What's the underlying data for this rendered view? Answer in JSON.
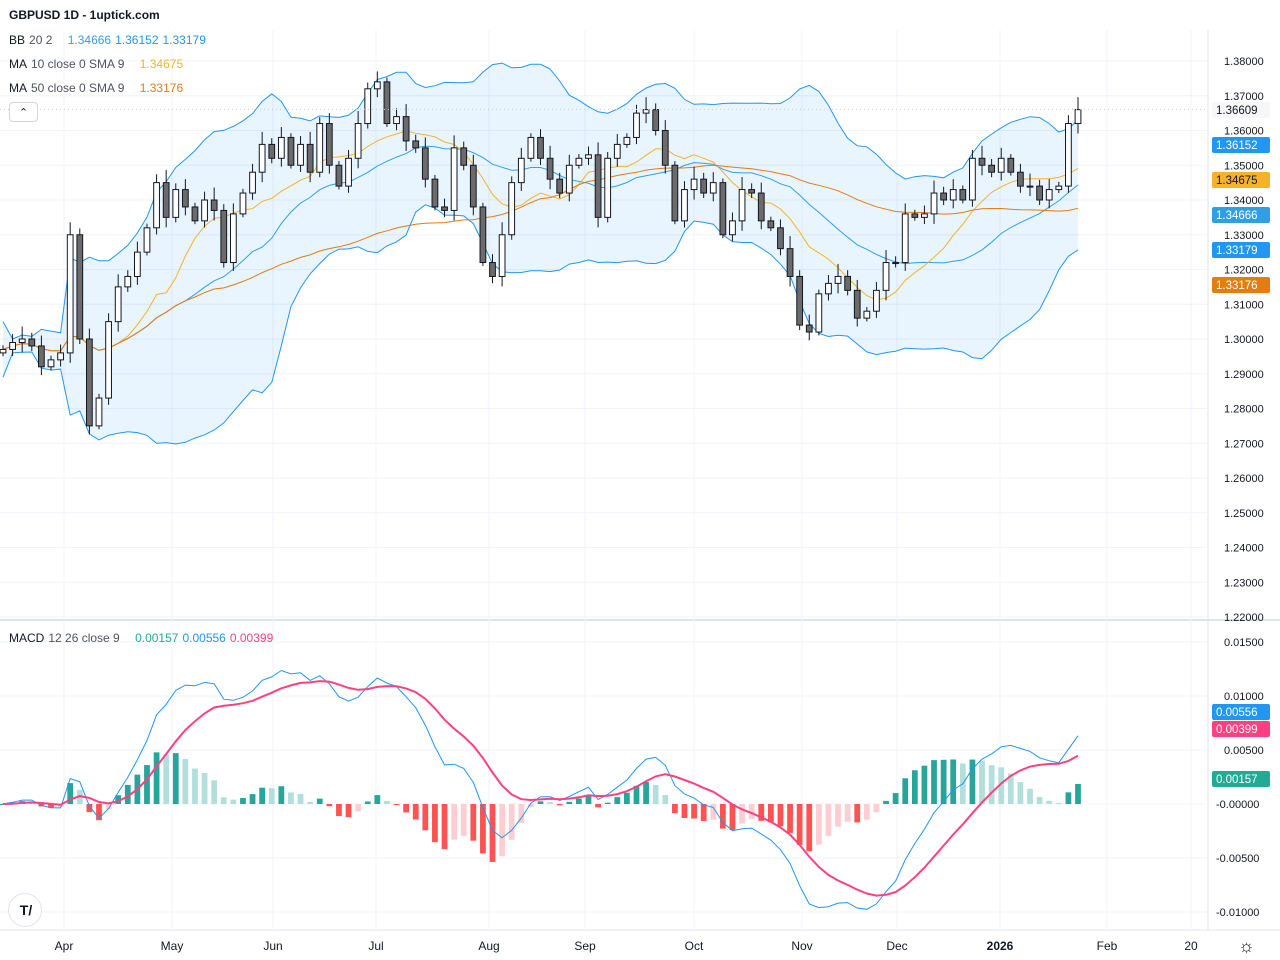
{
  "header": {
    "title": "GBPUSD 1D - 1uptick.com"
  },
  "legend": {
    "bb": {
      "label": "BB",
      "params": "20 2",
      "basis": "1.34666",
      "upper": "1.36152",
      "lower": "1.33179"
    },
    "ma10": {
      "label": "MA",
      "params": "10 close 0 SMA 9",
      "value": "1.34675"
    },
    "ma50": {
      "label": "MA",
      "params": "50 close 0 SMA 9",
      "value": "1.33176"
    },
    "macd": {
      "label": "MACD",
      "params": "12 26 close 9",
      "hist": "0.00157",
      "macd": "0.00556",
      "signal": "0.00399"
    }
  },
  "collapse_icon": "chevron-up-icon",
  "colors": {
    "bb": "#2196f3",
    "bb_basis": "#2fa0e8",
    "ma10": "#f5b32a",
    "ma50": "#e57c0f",
    "macd": "#2196f3",
    "signal": "#ff4081",
    "hist_up": "#26a69a",
    "hist_up_fade": "#b2dfdb",
    "hist_down": "#ff5252",
    "hist_down_fade": "#ffcdd2",
    "candle_up": "#ffffff",
    "candle_down": "#6b6b6b"
  },
  "price_axis": {
    "ticks": [
      "1.38000",
      "1.37000",
      "1.36000",
      "1.35000",
      "1.34000",
      "1.33000",
      "1.32000",
      "1.31000",
      "1.30000",
      "1.29000",
      "1.28000",
      "1.27000",
      "1.26000",
      "1.25000",
      "1.24000",
      "1.23000",
      "1.22000"
    ],
    "last_price": "1.36609",
    "badges": [
      {
        "value": "1.36152",
        "color": "#2196f3"
      },
      {
        "value": "1.34675",
        "color": "#f5b32a"
      },
      {
        "value": "1.34666",
        "color": "#2fa0e8"
      },
      {
        "value": "1.33179",
        "color": "#2196f3"
      },
      {
        "value": "1.33176",
        "color": "#e57c0f"
      }
    ]
  },
  "macd_axis": {
    "ticks": [
      "0.01500",
      "0.01000",
      "0.00500",
      "-0.00000",
      "-0.00500",
      "-0.01000"
    ],
    "badges": [
      {
        "value": "0.00556",
        "color": "#2196f3"
      },
      {
        "value": "0.00399",
        "color": "#ff4081"
      },
      {
        "value": "0.00157",
        "color": "#22ab94"
      }
    ]
  },
  "time_axis": {
    "labels": [
      "Apr",
      "May",
      "Jun",
      "Jul",
      "Aug",
      "Sep",
      "Oct",
      "Nov",
      "Dec",
      "2026",
      "Feb",
      "20"
    ]
  },
  "logo": "TV",
  "settings_icon": "gear-icon",
  "chart_data": {
    "type": "candlestick",
    "symbol": "GBPUSD",
    "interval": "1D",
    "ylim": [
      1.22,
      1.385
    ],
    "macd_ylim": [
      -0.011,
      0.0165
    ],
    "grid": true,
    "closes": [
      1.297,
      1.299,
      1.3,
      1.298,
      1.292,
      1.294,
      1.296,
      1.33,
      1.3,
      1.275,
      1.283,
      1.305,
      1.315,
      1.318,
      1.325,
      1.332,
      1.345,
      1.335,
      1.343,
      1.338,
      1.334,
      1.34,
      1.337,
      1.322,
      1.336,
      1.342,
      1.348,
      1.356,
      1.352,
      1.358,
      1.35,
      1.356,
      1.348,
      1.362,
      1.35,
      1.344,
      1.352,
      1.362,
      1.372,
      1.374,
      1.362,
      1.364,
      1.357,
      1.355,
      1.346,
      1.338,
      1.337,
      1.355,
      1.35,
      1.338,
      1.322,
      1.318,
      1.33,
      1.345,
      1.352,
      1.358,
      1.352,
      1.346,
      1.342,
      1.35,
      1.352,
      1.353,
      1.335,
      1.352,
      1.356,
      1.358,
      1.365,
      1.366,
      1.36,
      1.35,
      1.334,
      1.343,
      1.346,
      1.342,
      1.345,
      1.33,
      1.334,
      1.343,
      1.342,
      1.334,
      1.332,
      1.326,
      1.318,
      1.304,
      1.302,
      1.313,
      1.316,
      1.318,
      1.314,
      1.306,
      1.308,
      1.314,
      1.322,
      1.322,
      1.336,
      1.335,
      1.336,
      1.342,
      1.34,
      1.343,
      1.34,
      1.352,
      1.35,
      1.348,
      1.352,
      1.348,
      1.344,
      1.344,
      1.34,
      1.343,
      1.344,
      1.362,
      1.366
    ]
  }
}
